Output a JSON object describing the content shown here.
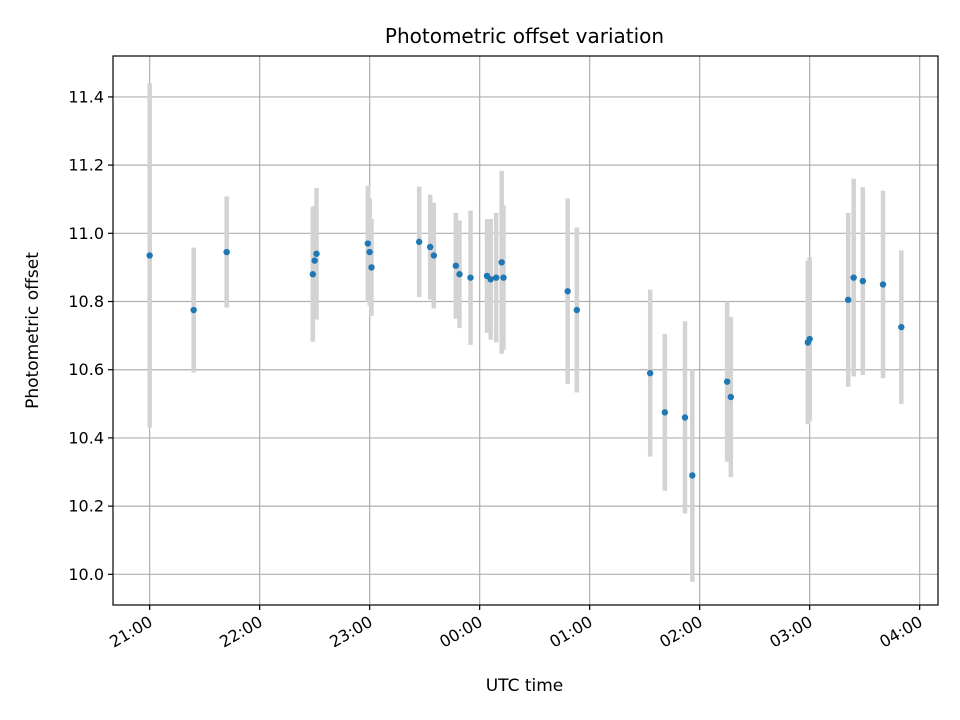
{
  "chart_data": {
    "type": "scatter",
    "title": "Photometric offset variation",
    "xlabel": "UTC time",
    "ylabel": "Photometric offset",
    "x_unit": "time",
    "x_ticks": [
      "21:00",
      "22:00",
      "23:00",
      "00:00",
      "01:00",
      "02:00",
      "03:00",
      "04:00"
    ],
    "x_tick_values": [
      "21:00",
      "22:00",
      "23:00",
      "24:00",
      "25:00",
      "26:00",
      "27:00",
      "28:00"
    ],
    "xlim": [
      "20:40",
      "28:10"
    ],
    "ylim": [
      9.91,
      11.52
    ],
    "y_ticks": [
      "10.0",
      "10.2",
      "10.4",
      "10.6",
      "10.8",
      "11.0",
      "11.2",
      "11.4"
    ],
    "y_tick_values": [
      10.0,
      10.2,
      10.4,
      10.6,
      10.8,
      11.0,
      11.2,
      11.4
    ],
    "grid": true,
    "marker_color": "#1f77b4",
    "errorbar_color": "#d3d3d3",
    "points": [
      {
        "x": "21:00",
        "y": 10.935,
        "err": 0.505
      },
      {
        "x": "21:24",
        "y": 10.775,
        "err": 0.183
      },
      {
        "x": "21:42",
        "y": 10.945,
        "err": 0.163
      },
      {
        "x": "22:29",
        "y": 10.88,
        "err": 0.198
      },
      {
        "x": "22:30",
        "y": 10.92,
        "err": 0.16
      },
      {
        "x": "22:31",
        "y": 10.94,
        "err": 0.193
      },
      {
        "x": "22:59",
        "y": 10.97,
        "err": 0.17
      },
      {
        "x": "23:00",
        "y": 10.945,
        "err": 0.157
      },
      {
        "x": "23:01",
        "y": 10.9,
        "err": 0.142
      },
      {
        "x": "23:27",
        "y": 10.975,
        "err": 0.162
      },
      {
        "x": "23:33",
        "y": 10.96,
        "err": 0.154
      },
      {
        "x": "23:35",
        "y": 10.935,
        "err": 0.155
      },
      {
        "x": "23:47",
        "y": 10.905,
        "err": 0.155
      },
      {
        "x": "23:49",
        "y": 10.88,
        "err": 0.158
      },
      {
        "x": "23:55",
        "y": 10.87,
        "err": 0.197
      },
      {
        "x": "24:04",
        "y": 10.875,
        "err": 0.167
      },
      {
        "x": "24:06",
        "y": 10.865,
        "err": 0.177
      },
      {
        "x": "24:09",
        "y": 10.87,
        "err": 0.19
      },
      {
        "x": "24:12",
        "y": 10.915,
        "err": 0.268
      },
      {
        "x": "24:13",
        "y": 10.87,
        "err": 0.212
      },
      {
        "x": "24:48",
        "y": 10.83,
        "err": 0.272
      },
      {
        "x": "24:53",
        "y": 10.775,
        "err": 0.242
      },
      {
        "x": "25:33",
        "y": 10.59,
        "err": 0.245
      },
      {
        "x": "25:41",
        "y": 10.475,
        "err": 0.23
      },
      {
        "x": "25:52",
        "y": 10.46,
        "err": 0.282
      },
      {
        "x": "25:56",
        "y": 10.29,
        "err": 0.312
      },
      {
        "x": "26:15",
        "y": 10.565,
        "err": 0.235
      },
      {
        "x": "26:17",
        "y": 10.52,
        "err": 0.235
      },
      {
        "x": "26:59",
        "y": 10.68,
        "err": 0.24
      },
      {
        "x": "27:00",
        "y": 10.69,
        "err": 0.24
      },
      {
        "x": "27:21",
        "y": 10.805,
        "err": 0.255
      },
      {
        "x": "27:24",
        "y": 10.87,
        "err": 0.29
      },
      {
        "x": "27:29",
        "y": 10.86,
        "err": 0.275
      },
      {
        "x": "27:40",
        "y": 10.85,
        "err": 0.275
      },
      {
        "x": "27:50",
        "y": 10.725,
        "err": 0.225
      }
    ]
  }
}
